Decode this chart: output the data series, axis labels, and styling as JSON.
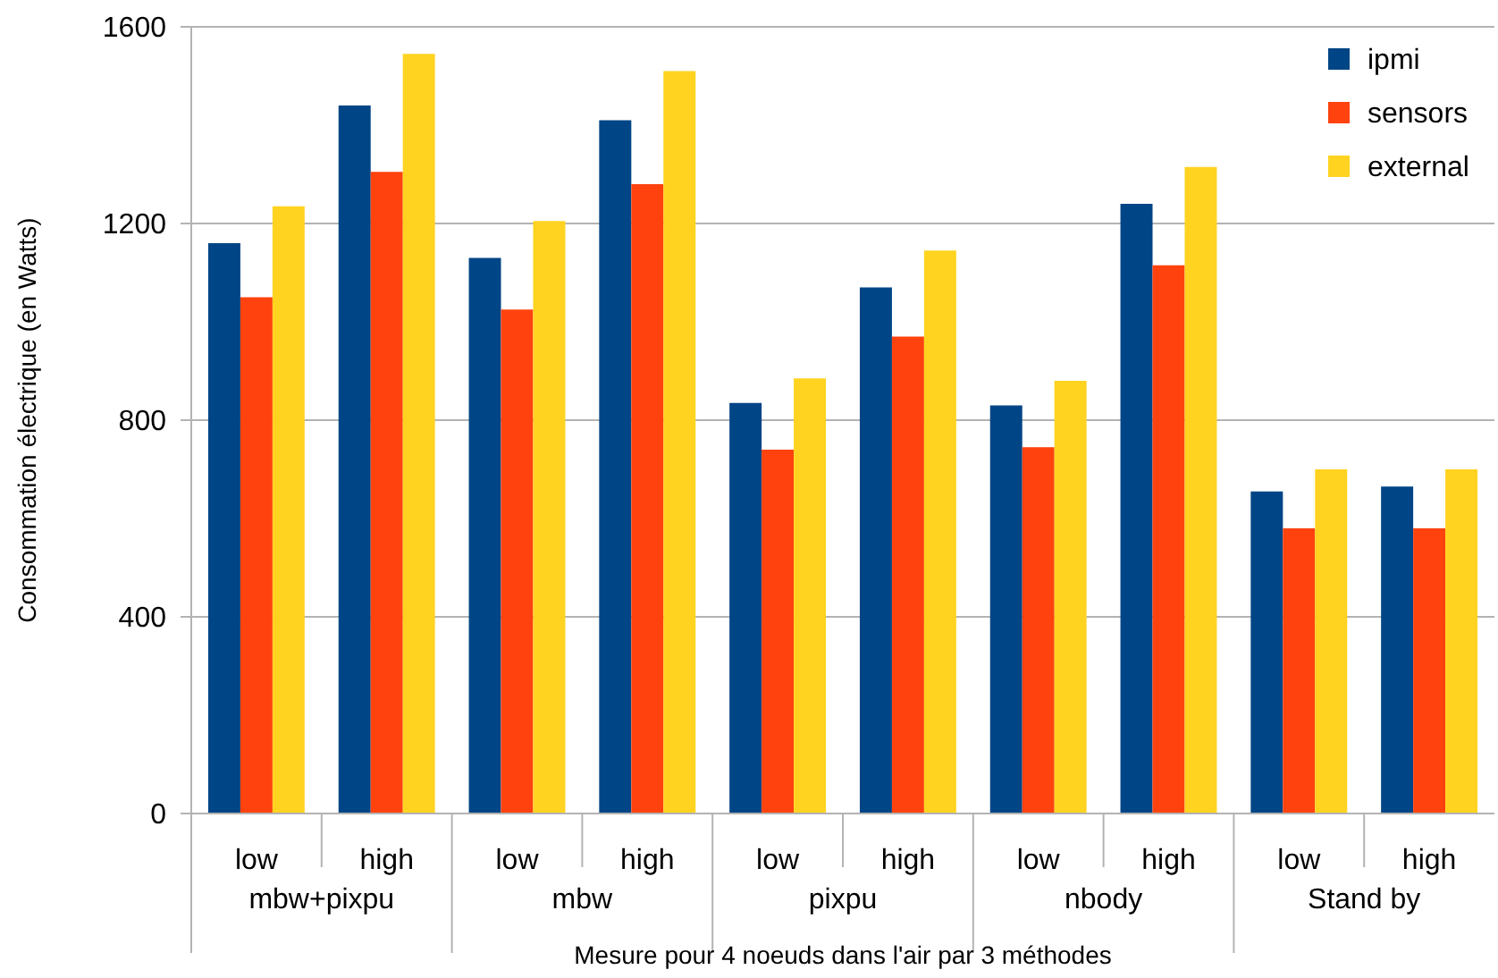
{
  "chart_data": {
    "type": "bar",
    "xlabel": "Mesure pour 4 noeuds dans l'air par 3 méthodes",
    "ylabel": "Consommation électrique (en Watts)",
    "categories": [
      "low",
      "high",
      "low",
      "high",
      "low",
      "high",
      "low",
      "high",
      "low",
      "high"
    ],
    "annotations": [
      "mbw+pixpu",
      "mbw",
      "pixpu",
      "nbody",
      "Stand by"
    ],
    "series": [
      {
        "name": "ipmi",
        "color": "#004586",
        "values": [
          1160,
          1440,
          1130,
          1410,
          835,
          1070,
          830,
          1240,
          655,
          665
        ]
      },
      {
        "name": "sensors",
        "color": "#ff420e",
        "values": [
          1050,
          1305,
          1025,
          1280,
          740,
          970,
          745,
          1115,
          580,
          580
        ]
      },
      {
        "name": "external",
        "color": "#ffd320",
        "values": [
          1235,
          1545,
          1205,
          1510,
          885,
          1145,
          880,
          1315,
          700,
          700
        ]
      }
    ],
    "ylim": [
      0,
      1600
    ],
    "yticks": [
      0,
      400,
      800,
      1200,
      1600
    ],
    "grid": "y",
    "legend": "top right"
  }
}
